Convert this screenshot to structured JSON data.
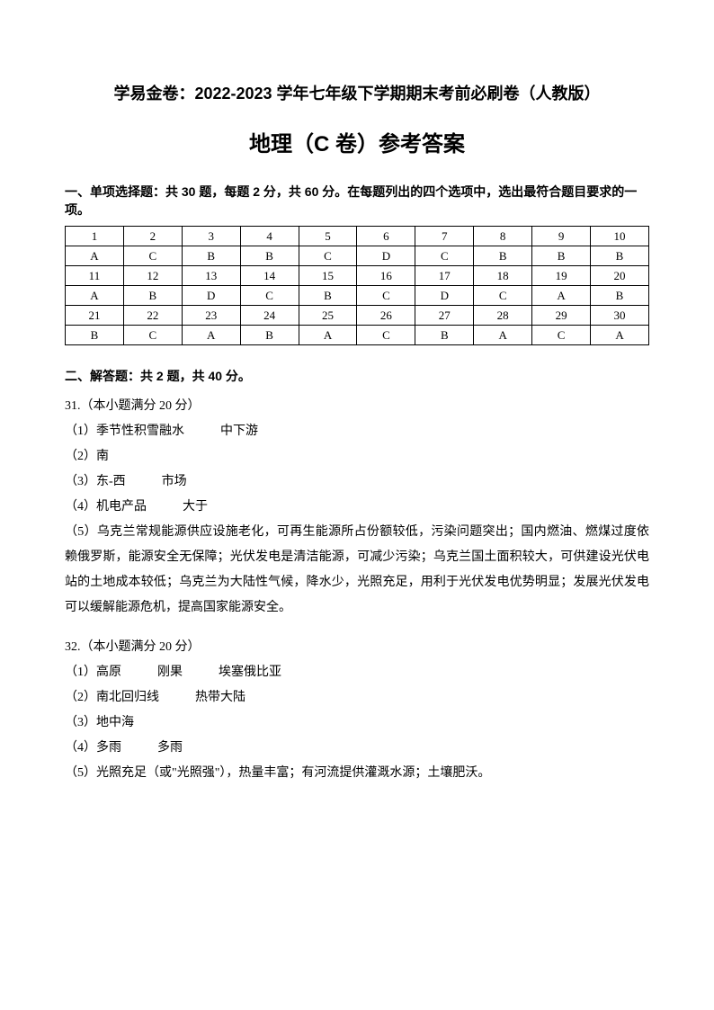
{
  "title_line1": "学易金卷：2022-2023 学年七年级下学期期末考前必刷卷（人教版）",
  "title_line2": "地理（C 卷）参考答案",
  "section1_heading": "一、单项选择题：共 30 题，每题 2 分，共 60 分。在每题列出的四个选项中，选出最符合题目要求的一项。",
  "table": {
    "rows": [
      [
        "1",
        "2",
        "3",
        "4",
        "5",
        "6",
        "7",
        "8",
        "9",
        "10"
      ],
      [
        "A",
        "C",
        "B",
        "B",
        "C",
        "D",
        "C",
        "B",
        "B",
        "B"
      ],
      [
        "11",
        "12",
        "13",
        "14",
        "15",
        "16",
        "17",
        "18",
        "19",
        "20"
      ],
      [
        "A",
        "B",
        "D",
        "C",
        "B",
        "C",
        "D",
        "C",
        "A",
        "B"
      ],
      [
        "21",
        "22",
        "23",
        "24",
        "25",
        "26",
        "27",
        "28",
        "29",
        "30"
      ],
      [
        "B",
        "C",
        "A",
        "B",
        "A",
        "C",
        "B",
        "A",
        "C",
        "A"
      ]
    ]
  },
  "section2_heading": "二、解答题：共 2 题，共 40 分。",
  "q31": {
    "header": "31.（本小题满分 20 分）",
    "a1_part1": "（1）季节性积雪融水",
    "a1_part2": "中下游",
    "a2": "（2）南",
    "a3_part1": "（3）东-西",
    "a3_part2": "市场",
    "a4_part1": "（4）机电产品",
    "a4_part2": "大于",
    "a5": "（5）乌克兰常规能源供应设施老化，可再生能源所占份额较低，污染问题突出；国内燃油、燃煤过度依赖俄罗斯，能源安全无保障；光伏发电是清洁能源，可减少污染；乌克兰国土面积较大，可供建设光伏电站的土地成本较低；乌克兰为大陆性气候，降水少，光照充足，用利于光伏发电优势明显；发展光伏发电可以缓解能源危机，提高国家能源安全。"
  },
  "q32": {
    "header": "32.（本小题满分 20 分）",
    "a1_part1": "（1）高原",
    "a1_part2": "刚果",
    "a1_part3": "埃塞俄比亚",
    "a2_part1": "（2）南北回归线",
    "a2_part2": "热带大陆",
    "a3": "（3）地中海",
    "a4_part1": "（4）多雨",
    "a4_part2": "多雨",
    "a5": "（5）光照充足（或\"光照强\"），热量丰富；有河流提供灌溉水源；土壤肥沃。"
  }
}
